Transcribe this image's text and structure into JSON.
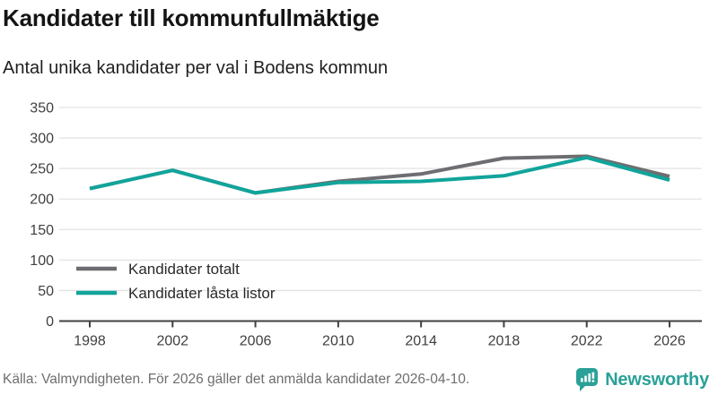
{
  "header": {
    "title": "Kandidater till kommunfullmäktige",
    "subtitle": "Antal unika kandidater per val i Bodens kommun"
  },
  "chart_data": {
    "type": "line",
    "x": [
      1998,
      2002,
      2006,
      2010,
      2014,
      2018,
      2022,
      2026
    ],
    "series": [
      {
        "name": "Kandidater totalt",
        "color": "#6d6e71",
        "values": [
          217,
          247,
          210,
          229,
          241,
          267,
          270,
          237
        ]
      },
      {
        "name": "Kandidater låsta listor",
        "color": "#11a49a",
        "values": [
          217,
          247,
          210,
          227,
          229,
          238,
          268,
          231
        ]
      }
    ],
    "title": "Kandidater till kommunfullmäktige",
    "subtitle": "Antal unika kandidater per val i Bodens kommun",
    "xlabel": "",
    "ylabel": "",
    "ylim": [
      0,
      350
    ],
    "yticks": [
      0,
      50,
      100,
      150,
      200,
      250,
      300,
      350
    ],
    "grid": true,
    "legend_position": "inside bottom-left"
  },
  "footer": {
    "source": "Källa: Valmyndigheten. För 2026 gäller det anmälda kandidater 2026-04-10.",
    "brand": "Newsworthy"
  },
  "colors": {
    "accent_teal": "#11a49a",
    "series_gray": "#6d6e71",
    "gridline": "#e3e3e3",
    "axis": "#404040",
    "tick_label": "#3f3f3f",
    "legend_text": "#2a2a2a",
    "title_text": "#141414",
    "muted_text": "#6e6e6e",
    "brand_teal": "#2aa198"
  }
}
